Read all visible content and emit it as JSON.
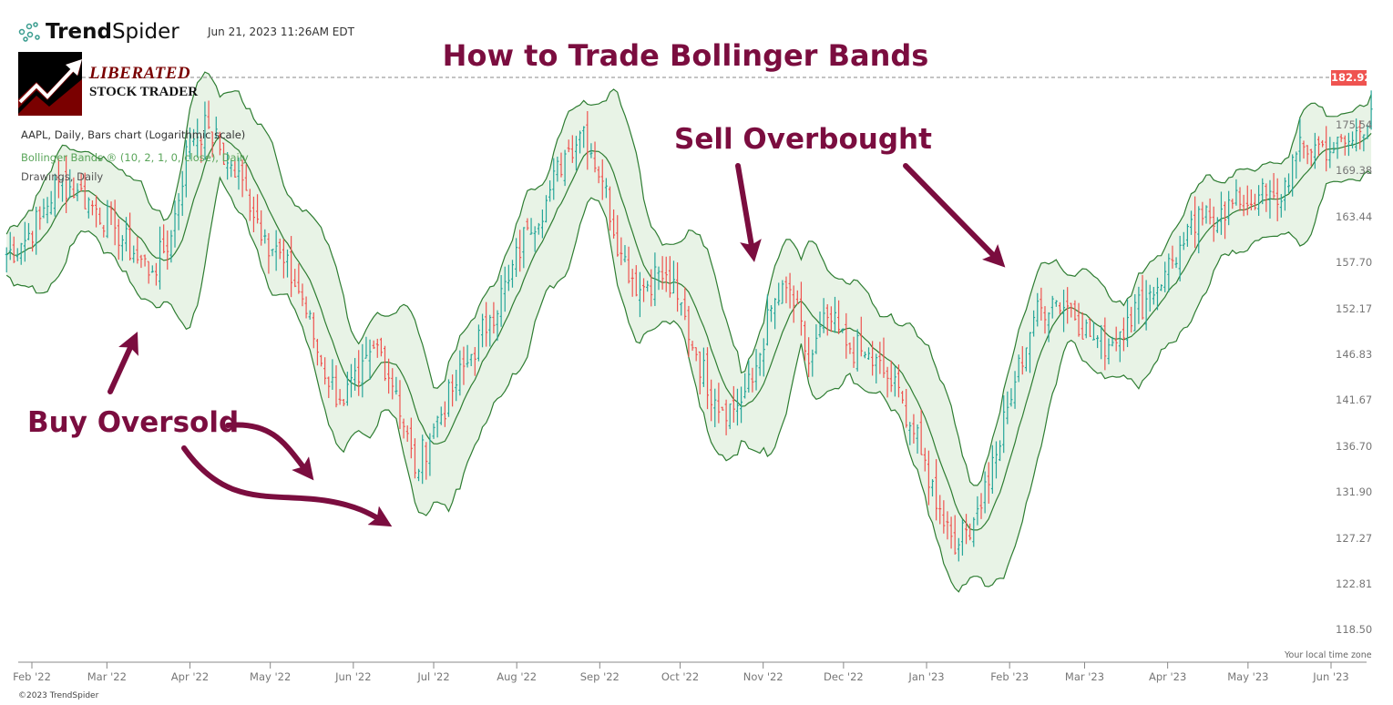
{
  "header": {
    "brand": {
      "bold": "Trend",
      "light": "Spider"
    },
    "timestamp": "Jun 21, 2023 11:26AM EDT",
    "logo_text": [
      "LIBERATED",
      "STOCK TRADER"
    ],
    "title": "How to Trade Bollinger Bands",
    "info_lines": [
      "AAPL, Daily, Bars chart (Logarithmic scale)",
      "Bollinger Bands ® (10, 2, 1, 0, close), Daily",
      "Drawings, Daily"
    ]
  },
  "annotations": {
    "buy": "Buy Oversold",
    "sell": "Sell Overbought"
  },
  "footer": {
    "timezone": "Your local time zone",
    "copyright": "©2023 TrendSpider"
  },
  "colors": {
    "up": "#26a69a",
    "down": "#ef5350",
    "band": "#2e7d32",
    "band_fill": "#e8f3e6",
    "annotation": "#7b0d3f",
    "last_price": "#ef5350"
  },
  "chart_data": {
    "type": "bar",
    "symbol": "AAPL",
    "scale": "log",
    "last_price": "182.92",
    "indicator": "Bollinger Bands (10, 2)",
    "y_ticks": [
      "175.54",
      "169.38",
      "163.44",
      "157.70",
      "152.17",
      "146.83",
      "141.67",
      "136.70",
      "131.90",
      "127.27",
      "122.81",
      "118.50"
    ],
    "x_ticks": [
      "Feb '22",
      "Mar '22",
      "Apr '22",
      "May '22",
      "Jun '22",
      "Jul '22",
      "Aug '22",
      "Sep '22",
      "Oct '22",
      "Nov '22",
      "Dec '22",
      "Jan '23",
      "Feb '23",
      "Mar '23",
      "Apr '23",
      "May '23",
      "Jun '23"
    ],
    "x_tick_dates": [
      "2022-02-01",
      "2022-03-01",
      "2022-04-01",
      "2022-05-01",
      "2022-06-01",
      "2022-07-01",
      "2022-08-01",
      "2022-09-01",
      "2022-10-01",
      "2022-11-01",
      "2022-12-01",
      "2023-01-01",
      "2023-02-01",
      "2023-03-01",
      "2023-04-01",
      "2023-05-01",
      "2023-06-01"
    ],
    "dates": [
      "2022-01-28",
      "2022-02-04",
      "2022-02-11",
      "2022-02-18",
      "2022-02-25",
      "2022-03-04",
      "2022-03-11",
      "2022-03-18",
      "2022-03-25",
      "2022-04-01",
      "2022-04-08",
      "2022-04-15",
      "2022-04-22",
      "2022-04-29",
      "2022-05-06",
      "2022-05-13",
      "2022-05-20",
      "2022-05-27",
      "2022-06-03",
      "2022-06-10",
      "2022-06-17",
      "2022-06-24",
      "2022-07-01",
      "2022-07-08",
      "2022-07-15",
      "2022-07-22",
      "2022-07-29",
      "2022-08-05",
      "2022-08-12",
      "2022-08-19",
      "2022-08-26",
      "2022-09-02",
      "2022-09-09",
      "2022-09-16",
      "2022-09-23",
      "2022-09-30",
      "2022-10-07",
      "2022-10-14",
      "2022-10-21",
      "2022-10-28",
      "2022-11-04",
      "2022-11-11",
      "2022-11-18",
      "2022-11-25",
      "2022-12-02",
      "2022-12-09",
      "2022-12-16",
      "2022-12-23",
      "2022-12-30",
      "2023-01-06",
      "2023-01-13",
      "2023-01-20",
      "2023-01-27",
      "2023-02-03",
      "2023-02-10",
      "2023-02-17",
      "2023-02-24",
      "2023-03-03",
      "2023-03-10",
      "2023-03-17",
      "2023-03-24",
      "2023-03-31",
      "2023-04-07",
      "2023-04-14",
      "2023-04-21",
      "2023-04-28",
      "2023-05-05",
      "2023-05-12",
      "2023-05-19",
      "2023-05-26",
      "2023-06-02",
      "2023-06-09",
      "2023-06-16"
    ],
    "close": [
      160.0,
      163.2,
      168.0,
      166.8,
      164.4,
      162.0,
      158.8,
      156.6,
      161.0,
      174.0,
      175.2,
      170.4,
      166.8,
      161.0,
      157.7,
      153.3,
      145.8,
      141.7,
      143.7,
      147.9,
      142.7,
      133.9,
      138.7,
      142.7,
      146.8,
      151.1,
      155.5,
      162.0,
      165.5,
      171.6,
      175.2,
      168.0,
      158.8,
      154.4,
      156.6,
      153.3,
      146.8,
      141.7,
      140.7,
      143.7,
      152.2,
      154.4,
      145.8,
      151.1,
      147.9,
      146.8,
      144.7,
      141.7,
      135.8,
      130.2,
      126.6,
      130.2,
      135.8,
      143.7,
      151.1,
      153.3,
      152.2,
      148.9,
      147.9,
      151.1,
      153.3,
      156.6,
      160.0,
      163.2,
      164.4,
      165.0,
      166.2,
      165.0,
      171.6,
      172.8,
      172.2,
      173.4,
      177.7
    ]
  }
}
